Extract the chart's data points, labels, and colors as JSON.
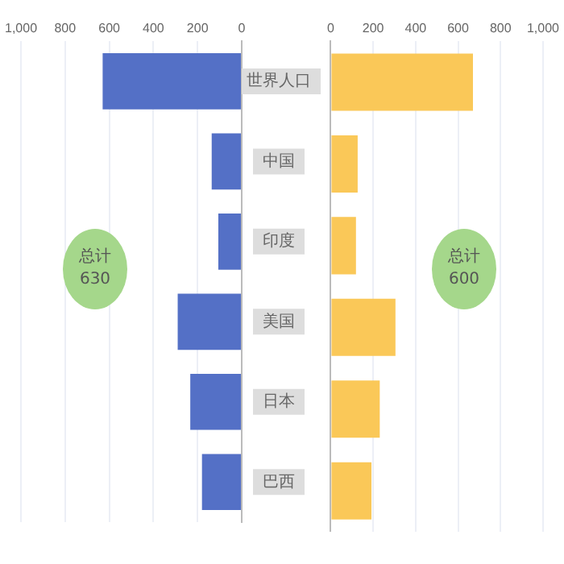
{
  "chart_data": [
    {
      "type": "bar",
      "orientation": "horizontal",
      "categories": [
        "世界人口",
        "中国",
        "印度",
        "美国",
        "日本",
        "巴西"
      ],
      "series": [
        {
          "color": "#5470c6",
          "values": [
            630,
            136,
            106,
            290,
            233,
            180
          ]
        }
      ],
      "xlim": [
        1000,
        0
      ],
      "xticks": [
        {
          "value": 1000,
          "label": "1,000"
        },
        800,
        600,
        400,
        200,
        0
      ],
      "grid": "x",
      "legend": false,
      "annotations": [
        "总计\n630"
      ]
    },
    {
      "type": "bar",
      "orientation": "horizontal",
      "categories": [
        null,
        null,
        null,
        null,
        null,
        null
      ],
      "series": [
        {
          "color": "#fac858",
          "values": [
            670,
            127,
            119,
            305,
            231,
            192
          ]
        }
      ],
      "xlim": [
        0,
        1000
      ],
      "xticks": [
        0,
        200,
        400,
        600,
        800,
        {
          "value": 1000,
          "label": "1,000"
        }
      ],
      "grid": "x",
      "legend": false,
      "tick_labels": "x",
      "annotations": [
        "总计\n600"
      ]
    }
  ]
}
